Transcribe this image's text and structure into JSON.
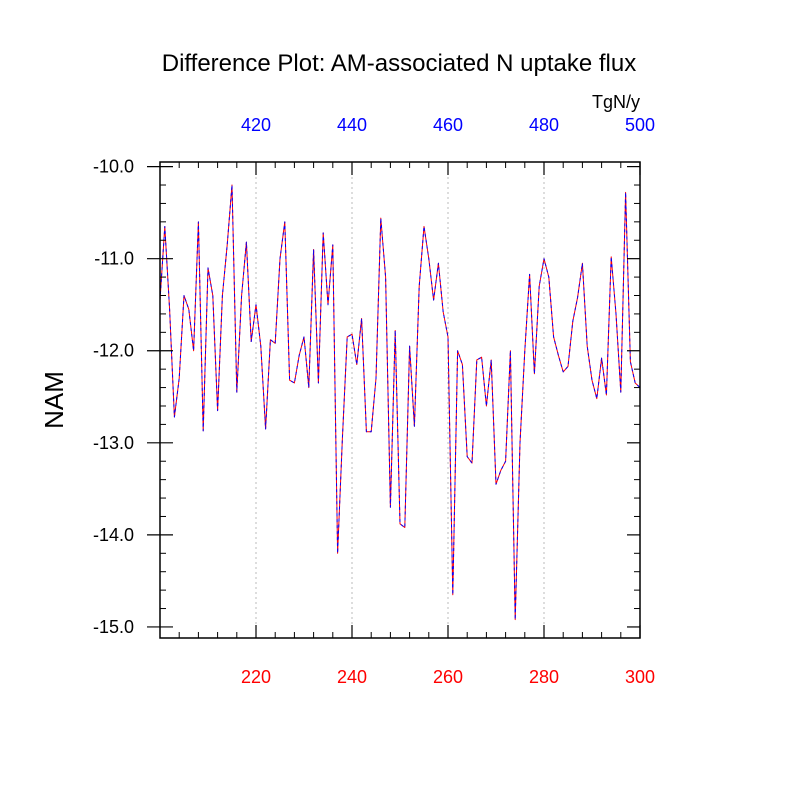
{
  "chart_data": {
    "type": "line",
    "title": "Difference Plot: AM-associated N uptake flux",
    "ylabel": "NAM",
    "units_label": "TgN/y",
    "colors": {
      "bottom_axis": "#ff0000",
      "top_axis": "#0000ff",
      "series_a": "#ff0000",
      "series_b": "#0000ff",
      "grid": "#bbbbbb",
      "frame": "#000000"
    },
    "xlim_bottom": [
      200,
      300
    ],
    "xlim_top": [
      400,
      500
    ],
    "ylim": [
      -15.12,
      -9.95
    ],
    "grid": "vertical dotted at major ticks",
    "bottom_ticks": [
      {
        "value": 220,
        "label": "220"
      },
      {
        "value": 240,
        "label": "240"
      },
      {
        "value": 260,
        "label": "260"
      },
      {
        "value": 280,
        "label": "280"
      },
      {
        "value": 300,
        "label": "300"
      }
    ],
    "top_ticks": [
      {
        "value": 420,
        "label": "420"
      },
      {
        "value": 440,
        "label": "440"
      },
      {
        "value": 460,
        "label": "460"
      },
      {
        "value": 480,
        "label": "480"
      },
      {
        "value": 500,
        "label": "500"
      }
    ],
    "y_ticks": [
      {
        "value": -10,
        "label": "-10.0"
      },
      {
        "value": -11,
        "label": "-11.0"
      },
      {
        "value": -12,
        "label": "-12.0"
      },
      {
        "value": -13,
        "label": "-13.0"
      },
      {
        "value": -14,
        "label": "-14.0"
      },
      {
        "value": -15,
        "label": "-15.0"
      }
    ],
    "x": [
      200,
      201,
      202,
      203,
      204,
      205,
      206,
      207,
      208,
      209,
      210,
      211,
      212,
      213,
      214,
      215,
      216,
      217,
      218,
      219,
      220,
      221,
      222,
      223,
      224,
      225,
      226,
      227,
      228,
      229,
      230,
      231,
      232,
      233,
      234,
      235,
      236,
      237,
      238,
      239,
      240,
      241,
      242,
      243,
      244,
      245,
      246,
      247,
      248,
      249,
      250,
      251,
      252,
      253,
      254,
      255,
      256,
      257,
      258,
      259,
      260,
      261,
      262,
      263,
      264,
      265,
      266,
      267,
      268,
      269,
      270,
      271,
      272,
      273,
      274,
      275,
      276,
      277,
      278,
      279,
      280,
      281,
      282,
      283,
      284,
      285,
      286,
      287,
      288,
      289,
      290,
      291,
      292,
      293,
      294,
      295,
      296,
      297,
      298,
      299,
      300
    ],
    "series": [
      {
        "values": [
          -11.45,
          -10.65,
          -11.55,
          -12.72,
          -12.3,
          -11.4,
          -11.55,
          -12.0,
          -10.6,
          -12.87,
          -11.1,
          -11.4,
          -12.65,
          -11.4,
          -10.85,
          -10.2,
          -12.45,
          -11.4,
          -10.82,
          -11.9,
          -11.5,
          -11.95,
          -12.85,
          -11.88,
          -11.92,
          -11.0,
          -10.6,
          -12.32,
          -12.35,
          -12.05,
          -11.85,
          -12.4,
          -10.9,
          -12.35,
          -10.72,
          -11.5,
          -10.85,
          -14.2,
          -12.95,
          -11.85,
          -11.82,
          -12.15,
          -11.65,
          -12.88,
          -12.88,
          -12.3,
          -10.56,
          -11.2,
          -13.7,
          -11.78,
          -13.88,
          -13.92,
          -11.95,
          -12.82,
          -11.3,
          -10.65,
          -11.0,
          -11.45,
          -11.05,
          -11.58,
          -11.85,
          -14.65,
          -12.0,
          -12.15,
          -13.15,
          -13.22,
          -12.1,
          -12.07,
          -12.6,
          -12.1,
          -13.45,
          -13.3,
          -13.2,
          -12.0,
          -14.92,
          -13.0,
          -12.0,
          -11.17,
          -12.25,
          -11.3,
          -11.0,
          -11.2,
          -11.85,
          -12.05,
          -12.23,
          -12.17,
          -11.68,
          -11.42,
          -11.05,
          -11.95,
          -12.32,
          -12.52,
          -12.08,
          -12.48,
          -10.98,
          -11.6,
          -12.45,
          -10.28,
          -12.12,
          -12.35,
          -12.4
        ]
      }
    ]
  }
}
